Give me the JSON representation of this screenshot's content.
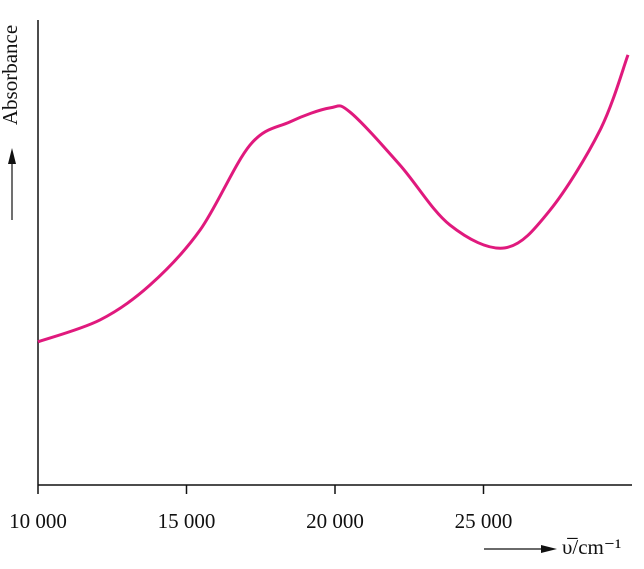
{
  "chart_data": {
    "type": "line",
    "x_label": "υ̅/cm⁻¹",
    "y_label": "Absorbance",
    "x": [
      10000,
      12088,
      13771,
      15455,
      17138,
      18485,
      19832,
      20505,
      22189,
      23872,
      25724,
      27239,
      28923,
      29865
    ],
    "series": [
      {
        "name": "absorbance",
        "color": "#e0197d",
        "values": [
          30.8,
          35.5,
          43.0,
          54.8,
          73.1,
          78.1,
          81.1,
          80.2,
          68.8,
          55.9,
          51.0,
          59.1,
          76.3,
          92.5
        ]
      }
    ],
    "xlim": [
      10000,
      30000
    ],
    "xticks": [
      {
        "value": 10000,
        "label": "10 000"
      },
      {
        "value": 15000,
        "label": "15 000"
      },
      {
        "value": 20000,
        "label": "20 000"
      },
      {
        "value": 25000,
        "label": "25 000"
      }
    ],
    "ylim": [
      0,
      100
    ]
  }
}
